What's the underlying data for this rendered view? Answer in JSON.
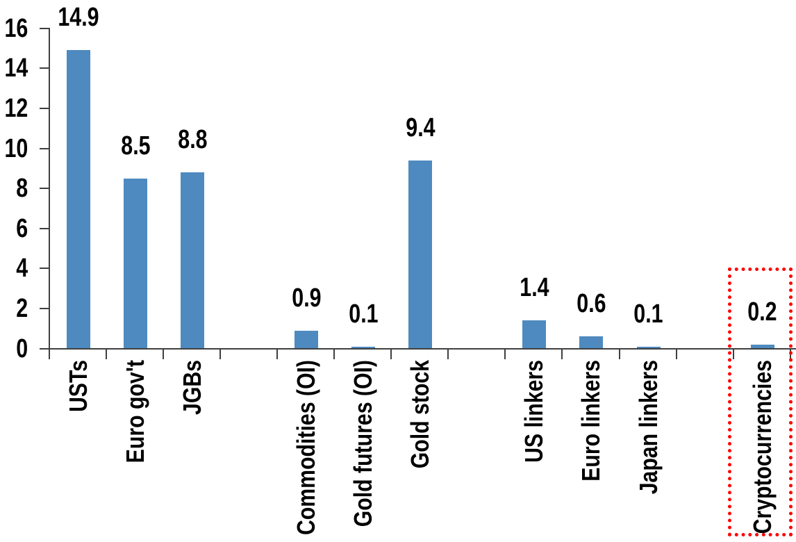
{
  "chart_data": {
    "type": "bar",
    "title": "",
    "xlabel": "",
    "ylabel": "",
    "ylim": [
      0,
      16
    ],
    "yticks": [
      0,
      2,
      4,
      6,
      8,
      10,
      12,
      14,
      16
    ],
    "grid": "off",
    "legend": "none",
    "bar_color": "#4e8abf",
    "axis_color": "#3f3f3f",
    "text_color": "#000000",
    "value_labels_shown": true,
    "slots": [
      {
        "label": "USTs",
        "value": 14.9,
        "value_label": "14.9"
      },
      {
        "label": "Euro gov't",
        "value": 8.5,
        "value_label": "8.5"
      },
      {
        "label": "JGBs",
        "value": 8.8,
        "value_label": "8.8"
      },
      {
        "label": null,
        "value": null,
        "value_label": null
      },
      {
        "label": "Commodities (OI)",
        "value": 0.9,
        "value_label": "0.9"
      },
      {
        "label": "Gold futures (OI)",
        "value": 0.1,
        "value_label": "0.1"
      },
      {
        "label": "Gold stock",
        "value": 9.4,
        "value_label": "9.4"
      },
      {
        "label": null,
        "value": null,
        "value_label": null
      },
      {
        "label": "US linkers",
        "value": 1.4,
        "value_label": "1.4"
      },
      {
        "label": "Euro linkers",
        "value": 0.6,
        "value_label": "0.6"
      },
      {
        "label": "Japan linkers",
        "value": 0.1,
        "value_label": "0.1"
      },
      {
        "label": null,
        "value": null,
        "value_label": null
      },
      {
        "label": "Cryptocurrencies",
        "value": 0.2,
        "value_label": "0.2"
      }
    ],
    "highlight": {
      "label": "Cryptocurrencies",
      "style": "dotted-rectangle",
      "color": "#ff0000"
    }
  }
}
